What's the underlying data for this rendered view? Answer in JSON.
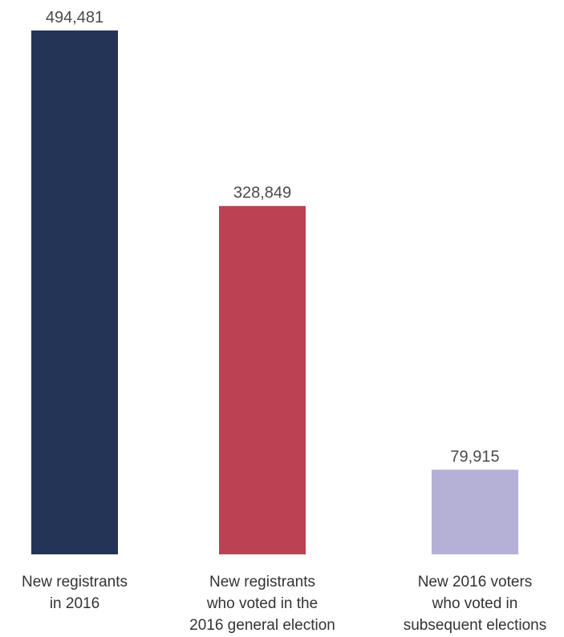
{
  "chart_data": {
    "type": "bar",
    "title": "",
    "xlabel": "",
    "ylabel": "",
    "grid": false,
    "ylim": [
      0,
      494481
    ],
    "categories": [
      [
        "New registrants",
        "in 2016"
      ],
      [
        "New registrants",
        "who voted in the",
        "2016 general election"
      ],
      [
        "New 2016 voters",
        "who voted in",
        "subsequent elections"
      ]
    ],
    "values": [
      494481,
      328849,
      79915
    ],
    "value_labels": [
      "494,481",
      "328,849",
      "79,915"
    ],
    "colors": [
      "#243456",
      "#bc4152",
      "#b4b0d6"
    ]
  }
}
